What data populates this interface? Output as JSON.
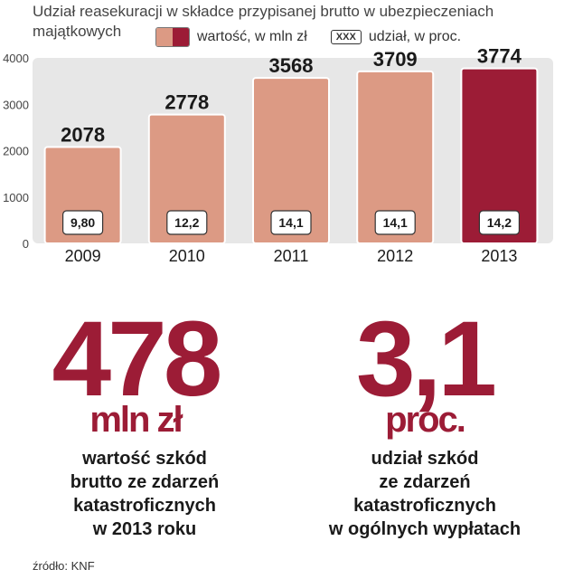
{
  "chart_data": {
    "type": "bar",
    "title": "Udział reasekuracji w składce przypisanej brutto w ubezpieczeniach majątkowych",
    "legend": {
      "value_label": "wartość, w mln zł",
      "share_box": "XXX",
      "share_label": "udział, w proc."
    },
    "categories": [
      "2009",
      "2010",
      "2011",
      "2012",
      "2013"
    ],
    "series": [
      {
        "name": "wartość, w mln zł",
        "values": [
          2078,
          2778,
          3568,
          3709,
          3774
        ]
      },
      {
        "name": "udział, w proc.",
        "values": [
          9.8,
          12.2,
          14.1,
          14.1,
          14.2
        ]
      }
    ],
    "value_labels": [
      "2078",
      "2778",
      "3568",
      "3709",
      "3774"
    ],
    "share_labels": [
      "9,80",
      "12,2",
      "14,1",
      "14,1",
      "14,2"
    ],
    "ylim": [
      0,
      4000
    ],
    "yticks": [
      0,
      1000,
      2000,
      3000,
      4000
    ],
    "grid": false,
    "highlight_index": 4
  },
  "colors": {
    "bar": "#dc9a84",
    "bar_stroke": "#ffffff",
    "highlight": "#9c1c36",
    "plot_bg": "#e7e7e7",
    "accent": "#9c1c36"
  },
  "stats": [
    {
      "value": "478",
      "unit": "mln zł",
      "description": [
        "wartość szkód",
        "brutto ze zdarzeń",
        "katastroficznych",
        "w 2013 roku"
      ]
    },
    {
      "value": "3,1",
      "unit": "proc.",
      "description": [
        "udział szkód",
        "ze zdarzeń",
        "katastroficznych",
        "w ogólnych wypłatach"
      ]
    }
  ],
  "source": "źródło: KNF"
}
